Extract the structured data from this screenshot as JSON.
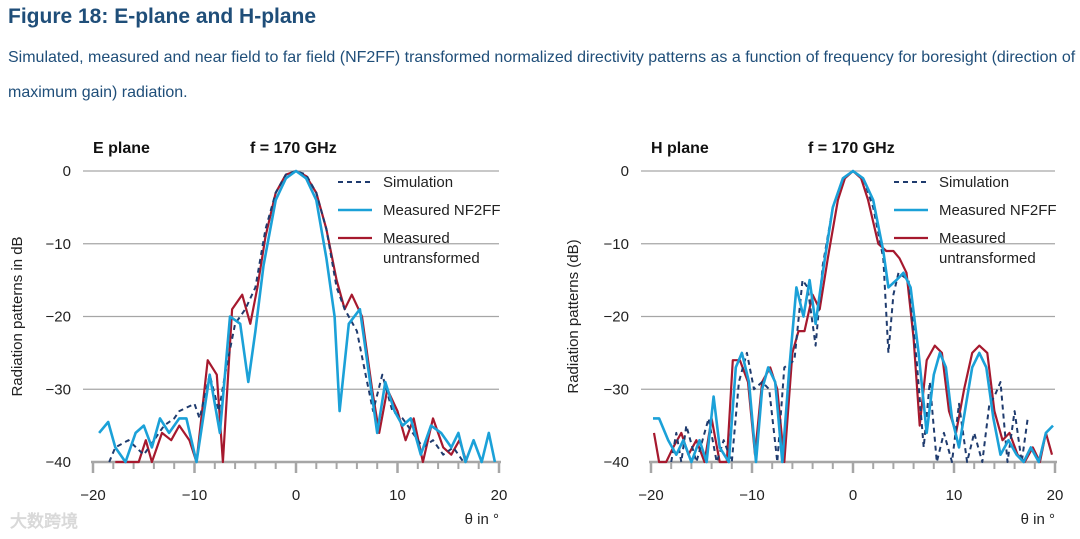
{
  "figure": {
    "title": "Figure 18: E-plane and H-plane",
    "caption": "Simulated, measured and near field to far field (NF2FF) transformed normalized directivity patterns as a function of frequency for boresight (direction of maximum gain) radiation."
  },
  "watermark": "大数跨境",
  "colors": {
    "simulation": "#1f3b6e",
    "measured_nf2ff": "#1ba1d8",
    "measured_untransformed": "#a6192e",
    "grid": "#a6a6a6",
    "title": "#1f4e79"
  },
  "chart_data": [
    {
      "type": "line",
      "plane_label": "E plane",
      "freq_label": "f = 170 GHz",
      "ylabel": "Radiation patterns in dB",
      "xlabel": "θ in °",
      "xlim": [
        -20,
        20
      ],
      "ylim": [
        -40,
        0
      ],
      "xticks": [
        "−20",
        "−10",
        "0",
        "10",
        "20"
      ],
      "yticks": [
        "0",
        "−10",
        "−20",
        "−30",
        "−40"
      ],
      "grid": "horizontal",
      "legend_position": "top-right",
      "series": [
        {
          "name": "Simulation",
          "style": "dashed",
          "x": [
            -18.4,
            -17.8,
            -16.5,
            -15.0,
            -14.0,
            -13.0,
            -12.0,
            -11.5,
            -10.0,
            -9.5,
            -8.5,
            -7.6,
            -7.0,
            -6.0,
            -5.0,
            -4.0,
            -3.0,
            -2.0,
            -1.0,
            0,
            1.0,
            2.0,
            3.0,
            4.0,
            4.8,
            6.0,
            7.0,
            7.6,
            8.5,
            9.5,
            10.5,
            11.5,
            12.5,
            13.5,
            14.5,
            15.5,
            16.5
          ],
          "y": [
            -40,
            -38,
            -37,
            -39,
            -37,
            -35,
            -34,
            -33,
            -32,
            -34,
            -28,
            -33,
            -28,
            -21,
            -19,
            -16,
            -8,
            -3,
            -0.5,
            0,
            -0.5,
            -3,
            -8,
            -16,
            -19,
            -22,
            -29,
            -33,
            -28,
            -33,
            -34,
            -36,
            -38,
            -37,
            -39,
            -38,
            -40
          ]
        },
        {
          "name": "Measured NF2FF",
          "style": "solid",
          "x": [
            -19.4,
            -18.5,
            -17.8,
            -16.8,
            -15.8,
            -15.0,
            -14.2,
            -13.4,
            -12.5,
            -11.5,
            -10.8,
            -9.8,
            -8.5,
            -7.5,
            -6.5,
            -5.5,
            -4.7,
            -4.0,
            -3.2,
            -2.0,
            -1.0,
            0,
            1.0,
            2.0,
            3.0,
            3.8,
            4.3,
            5.2,
            6.3,
            7.3,
            8.0,
            8.8,
            9.7,
            10.5,
            11.3,
            12.3,
            13.3,
            14.3,
            15.3,
            16.0,
            16.7,
            17.5,
            18.3,
            19.0,
            19.6
          ],
          "y": [
            -36,
            -34.5,
            -38,
            -40,
            -36,
            -35,
            -38,
            -34,
            -36,
            -34,
            -34,
            -40,
            -28,
            -36,
            -20,
            -21,
            -29,
            -22,
            -13,
            -4,
            -1,
            0,
            -1,
            -4,
            -12,
            -20,
            -33,
            -21,
            -19,
            -29,
            -36,
            -29,
            -33,
            -35,
            -34,
            -39,
            -35,
            -36,
            -38,
            -36,
            -40,
            -37,
            -40,
            -36,
            -40
          ]
        },
        {
          "name": "Measured untransformed",
          "style": "solid",
          "x": [
            -17.8,
            -16.8,
            -15.5,
            -14.8,
            -14.2,
            -13.2,
            -12.3,
            -11.5,
            -10.5,
            -9.8,
            -8.7,
            -7.8,
            -7.2,
            -6.3,
            -5.3,
            -4.5,
            -3.8,
            -3.0,
            -2.0,
            -1.0,
            0,
            1.0,
            2.0,
            3.0,
            4.0,
            4.8,
            5.5,
            6.5,
            7.5,
            8.2,
            9.0,
            10.0,
            10.8,
            11.6,
            12.5,
            13.5,
            14.5,
            15.3,
            16.1,
            16.8
          ],
          "y": [
            -40,
            -40,
            -40,
            -37,
            -40,
            -36,
            -37,
            -35,
            -37,
            -40,
            -26,
            -28,
            -40,
            -19,
            -17,
            -21,
            -16,
            -9,
            -3,
            -0.5,
            0,
            -0.7,
            -3,
            -8,
            -15,
            -19,
            -17,
            -20,
            -30,
            -36,
            -30,
            -33,
            -37,
            -34,
            -40,
            -34,
            -38,
            -39,
            -37,
            -40
          ]
        }
      ]
    },
    {
      "type": "line",
      "plane_label": "H plane",
      "freq_label": "f = 170 GHz",
      "ylabel": "Radiation patterns (dB)",
      "xlabel": "θ in °",
      "xlim": [
        -20,
        20
      ],
      "ylim": [
        -40,
        0
      ],
      "xticks": [
        "−20",
        "−10",
        "0",
        "10",
        "20"
      ],
      "yticks": [
        "0",
        "−10",
        "−20",
        "−30",
        "−40"
      ],
      "grid": "horizontal",
      "legend_position": "top-right",
      "series": [
        {
          "name": "Simulation",
          "style": "dashed",
          "x": [
            -18.0,
            -17.5,
            -17.0,
            -16.5,
            -15.5,
            -14.3,
            -13.5,
            -12.8,
            -12.0,
            -11.3,
            -10.5,
            -9.8,
            -9.0,
            -8.3,
            -7.5,
            -6.8,
            -5.8,
            -5.0,
            -4.5,
            -3.7,
            -3.0,
            -2.0,
            -1.0,
            0,
            1.0,
            2.0,
            3.0,
            3.5,
            4.0,
            4.5,
            5.5,
            6.3,
            7.0,
            7.6,
            8.3,
            9.0,
            9.8,
            10.5,
            11.3,
            12.0,
            12.8,
            13.5,
            14.0,
            14.6,
            15.3,
            16.0,
            16.7,
            17.3
          ],
          "y": [
            -40,
            -36,
            -40,
            -35,
            -40,
            -34,
            -40,
            -37,
            -40,
            -29,
            -25,
            -30,
            -29,
            -30,
            -40,
            -27,
            -26,
            -15,
            -16,
            -24,
            -13,
            -5,
            -1,
            0,
            -1,
            -5,
            -12,
            -25,
            -17,
            -14,
            -15,
            -26,
            -38,
            -29,
            -40,
            -36,
            -40,
            -32,
            -40,
            -36,
            -40,
            -32,
            -31,
            -29,
            -40,
            -33,
            -40,
            -34
          ]
        },
        {
          "name": "Measured NF2FF",
          "style": "solid",
          "x": [
            -19.8,
            -19.2,
            -18.3,
            -17.5,
            -16.8,
            -16.0,
            -15.2,
            -14.5,
            -13.8,
            -13.2,
            -12.3,
            -11.6,
            -11.0,
            -10.3,
            -9.6,
            -9.0,
            -8.4,
            -7.7,
            -7.0,
            -6.3,
            -5.6,
            -4.9,
            -4.3,
            -3.7,
            -3.0,
            -2.0,
            -1.0,
            0,
            1.0,
            2.0,
            3.0,
            3.5,
            4.3,
            5.0,
            5.7,
            6.5,
            7.3,
            8.0,
            8.6,
            9.2,
            9.8,
            10.5,
            11.2,
            11.8,
            12.5,
            13.2,
            13.9,
            14.6,
            15.4,
            16.2,
            16.9,
            17.6,
            18.4,
            19.1,
            19.8
          ],
          "y": [
            -34,
            -34,
            -37,
            -39,
            -37,
            -40,
            -37,
            -40,
            -31,
            -38,
            -40,
            -27,
            -25,
            -29,
            -40,
            -30,
            -27,
            -29,
            -40,
            -27,
            -16,
            -20,
            -15,
            -21,
            -14,
            -5,
            -1,
            0,
            -1,
            -4,
            -11,
            -16,
            -15,
            -14,
            -16,
            -25,
            -36,
            -28,
            -25,
            -27,
            -34,
            -38,
            -32,
            -27,
            -25,
            -27,
            -34,
            -39,
            -37,
            -39,
            -40,
            -38,
            -40,
            -36,
            -35
          ]
        },
        {
          "name": "Measured untransformed",
          "style": "solid",
          "x": [
            -19.7,
            -19.2,
            -18.5,
            -17.8,
            -17.0,
            -16.3,
            -15.5,
            -14.7,
            -14.0,
            -13.2,
            -12.5,
            -11.9,
            -11.2,
            -10.4,
            -9.7,
            -9.0,
            -8.2,
            -7.5,
            -6.8,
            -6.0,
            -5.4,
            -4.8,
            -4.0,
            -3.3,
            -2.5,
            -1.5,
            -0.8,
            0,
            0.8,
            1.5,
            2.5,
            3.3,
            4.0,
            4.6,
            5.3,
            6.0,
            6.6,
            7.3,
            8.1,
            8.8,
            9.5,
            10.2,
            11.0,
            11.8,
            12.5,
            13.3,
            14.0,
            14.8,
            15.5,
            16.3,
            17.0,
            17.8,
            18.5,
            19.1,
            19.7
          ],
          "y": [
            -36,
            -40,
            -40,
            -38,
            -36,
            -39,
            -37,
            -40,
            -34,
            -40,
            -40,
            -26,
            -26,
            -29,
            -39,
            -29,
            -27,
            -30,
            -40,
            -25,
            -22,
            -22,
            -17,
            -19,
            -12,
            -4,
            -1,
            0,
            -1,
            -4,
            -10,
            -11,
            -11,
            -12,
            -14,
            -23,
            -35,
            -26,
            -24,
            -25,
            -33,
            -36,
            -30,
            -25,
            -24,
            -25,
            -33,
            -37,
            -36,
            -39,
            -40,
            -38,
            -40,
            -36,
            -39
          ]
        }
      ]
    }
  ]
}
